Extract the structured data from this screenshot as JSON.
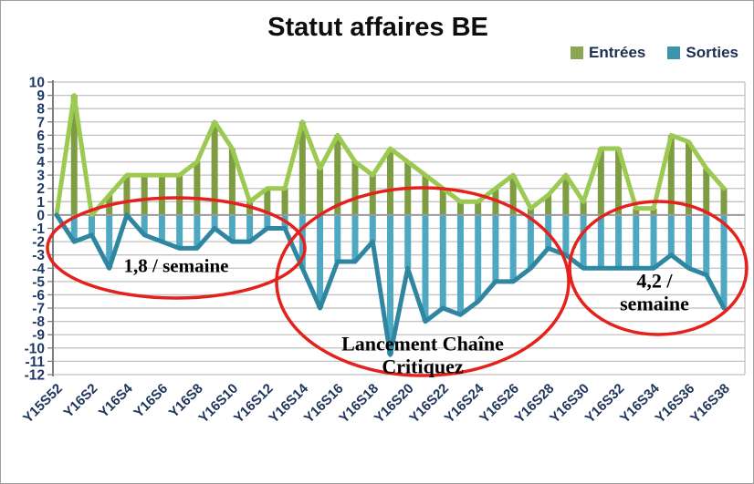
{
  "title": "Statut affaires BE",
  "legend": {
    "entries": [
      {
        "label": "Entrées",
        "color": "#8ba653"
      },
      {
        "label": "Sorties",
        "color": "#3c93ae"
      }
    ]
  },
  "highlight_color": "#e4211c",
  "axis_label_color": "#1f3864",
  "chart_data": {
    "type": "line",
    "title": "Statut affaires BE",
    "drop_lines": true,
    "grid": true,
    "legend_position": "top-right",
    "ylim": [
      -12,
      10
    ],
    "ytick_step": 1,
    "ytick_labels": [
      "10",
      "9",
      "8",
      "7",
      "6",
      "5",
      "4",
      "3",
      "2",
      "1",
      "0",
      "-1",
      "-2",
      "-3",
      "-4",
      "-5",
      "-6",
      "-7",
      "-8",
      "-9",
      "-10",
      "-11",
      "-12"
    ],
    "x_tick_labels": [
      "Y15S52",
      "Y16S2",
      "Y16S4",
      "Y16S6",
      "Y16S8",
      "Y16S10",
      "Y16S12",
      "Y16S14",
      "Y16S16",
      "Y16S18",
      "Y16S20",
      "Y16S22",
      "Y16S24",
      "Y16S26",
      "Y16S28",
      "Y16S30",
      "Y16S32",
      "Y16S34",
      "Y16S36",
      "Y16S38"
    ],
    "points_per_tick": 2,
    "n_points": 39,
    "series": [
      {
        "name": "Entrées",
        "line_color": "#9cc952",
        "drop_color": "#7e9c41",
        "values": [
          0,
          9,
          0,
          1.5,
          3,
          3,
          3,
          3,
          4,
          7,
          5,
          1,
          2,
          2,
          7,
          3.5,
          6,
          4,
          3,
          5,
          4,
          3,
          2,
          1,
          1,
          2,
          3,
          0.5,
          1.5,
          3,
          1,
          5,
          5,
          0.5,
          0.5,
          6,
          5.5,
          3.5,
          2
        ]
      },
      {
        "name": "Sorties",
        "line_color": "#2e86a0",
        "drop_color": "#4fa8c2",
        "values": [
          0,
          -2,
          -1.5,
          -4,
          0,
          -1.5,
          -2,
          -2.5,
          -2.5,
          -1,
          -2,
          -2,
          -1,
          -1,
          -4,
          -7,
          -3.5,
          -3.5,
          -2,
          -10.5,
          -4,
          -8,
          -7,
          -7.5,
          -6.5,
          -5,
          -5,
          -4,
          -2.5,
          -3,
          -4,
          -4,
          -4,
          -4,
          -4,
          -3,
          -4,
          -4.5,
          -7
        ]
      }
    ]
  },
  "annotations": [
    {
      "lines": [
        "1,8 / semaine"
      ]
    },
    {
      "lines": [
        "Lancement Chaîne",
        "Critiquez"
      ]
    },
    {
      "lines": [
        "4,2 /",
        "semaine"
      ]
    }
  ]
}
